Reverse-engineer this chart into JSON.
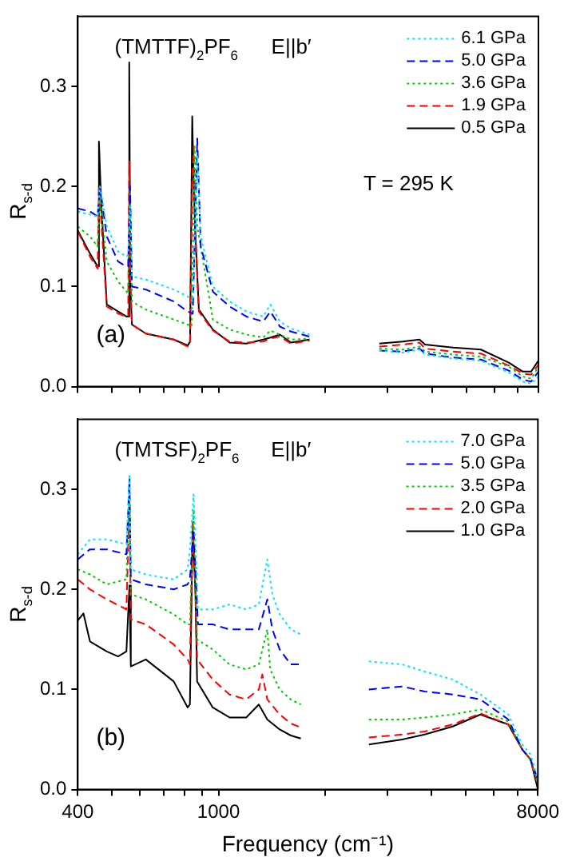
{
  "chart_data": [
    {
      "type": "line",
      "ylabel": "R$_{s-d}$",
      "xlim": [
        400,
        8000
      ],
      "ylim": [
        0,
        0.37
      ],
      "log": "x",
      "tick_labels": "y",
      "legend": "top right",
      "grid": false,
      "xticks": [
        {
          "value": 400,
          "label": null
        },
        {
          "value": 500,
          "label": null
        },
        {
          "value": 600,
          "label": null
        },
        {
          "value": 700,
          "label": null
        },
        {
          "value": 800,
          "label": null
        },
        {
          "value": 900,
          "label": null
        },
        {
          "value": 1000,
          "label": null
        },
        {
          "value": 2000,
          "label": null
        },
        {
          "value": 3000,
          "label": null
        },
        {
          "value": 4000,
          "label": null
        },
        {
          "value": 5000,
          "label": null
        },
        {
          "value": 6000,
          "label": null
        },
        {
          "value": 7000,
          "label": null
        },
        {
          "value": 8000,
          "label": null
        }
      ],
      "yticks": [
        {
          "value": 0,
          "label": "0.0"
        },
        {
          "value": 0.1,
          "label": "0.1"
        },
        {
          "value": 0.2,
          "label": "0.2"
        },
        {
          "value": 0.3,
          "label": "0.3"
        }
      ],
      "annotations": [
        "(TMTTF)$_{2}$PF$_{6}$",
        "E||b′",
        "(a)",
        "T = 295 K"
      ],
      "series": [
        {
          "name": "6.1 GPa",
          "color": "#00e5ff",
          "line_style": "dotted",
          "x": [
            400,
            433,
            455,
            462,
            483,
            520,
            549,
            555,
            562,
            569,
            623,
            747,
            818,
            845,
            870,
            890,
            963,
            1074,
            1198,
            1336,
            1400,
            1489,
            1601,
            1805,
            2300,
            2843,
            3311,
            3692,
            3828,
            4591,
            5503,
            6600,
            7228,
            7629,
            8000
          ],
          "values": [
            0.175,
            0.172,
            0.17,
            0.2,
            0.16,
            0.135,
            0.13,
            0.132,
            0.18,
            0.11,
            0.107,
            0.097,
            0.09,
            0.085,
            0.23,
            0.15,
            0.1,
            0.085,
            0.075,
            0.07,
            0.082,
            0.065,
            0.058,
            0.052,
            null,
            0.036,
            0.034,
            0.037,
            0.032,
            0.028,
            0.026,
            0.014,
            0.005,
            0.003,
            0.01
          ]
        },
        {
          "name": "5.0 GPa",
          "color": "#0000ff",
          "line_style": "dashed",
          "x": [
            400,
            433,
            455,
            462,
            483,
            520,
            549,
            555,
            562,
            569,
            623,
            747,
            818,
            845,
            870,
            890,
            963,
            1074,
            1198,
            1336,
            1400,
            1489,
            1601,
            1805,
            2300,
            2843,
            3311,
            3692,
            3828,
            4591,
            5503,
            6600,
            7228,
            7629,
            8000
          ],
          "values": [
            0.178,
            0.175,
            0.17,
            0.2,
            0.15,
            0.125,
            0.12,
            0.12,
            0.2,
            0.1,
            0.097,
            0.085,
            0.075,
            0.073,
            0.248,
            0.14,
            0.095,
            0.08,
            0.07,
            0.065,
            0.075,
            0.06,
            0.055,
            0.05,
            null,
            0.036,
            0.035,
            0.038,
            0.033,
            0.029,
            0.027,
            0.016,
            0.007,
            0.005,
            0.015
          ]
        },
        {
          "name": "3.6 GPa",
          "color": "#00cc00",
          "line_style": "dotted",
          "x": [
            400,
            433,
            455,
            462,
            483,
            520,
            549,
            555,
            562,
            569,
            623,
            747,
            818,
            838,
            855,
            870,
            963,
            1074,
            1198,
            1336,
            1400,
            1489,
            1601,
            1805,
            2300,
            2843,
            3311,
            3692,
            3828,
            4591,
            5503,
            6600,
            7228,
            7629,
            8000
          ],
          "values": [
            0.16,
            0.15,
            0.14,
            0.19,
            0.125,
            0.105,
            0.095,
            0.093,
            0.2,
            0.085,
            0.077,
            0.067,
            0.062,
            0.06,
            0.24,
            0.16,
            0.067,
            0.057,
            0.052,
            0.049,
            0.056,
            0.052,
            0.047,
            0.048,
            null,
            0.038,
            0.037,
            0.04,
            0.035,
            0.032,
            0.03,
            0.02,
            0.01,
            0.008,
            0.02
          ]
        },
        {
          "name": "1.9 GPa",
          "color": "#ff0000",
          "line_style": "dashed",
          "x": [
            400,
            433,
            455,
            459,
            465,
            483,
            520,
            549,
            555,
            559,
            563,
            569,
            623,
            747,
            818,
            830,
            842,
            850,
            860,
            879,
            963,
            1074,
            1198,
            1336,
            1400,
            1489,
            1601,
            1805,
            2300,
            2843,
            3311,
            3692,
            3828,
            4591,
            5503,
            6600,
            7228,
            7629,
            8000
          ],
          "values": [
            0.155,
            0.13,
            0.118,
            0.2,
            0.17,
            0.08,
            0.073,
            0.07,
            0.07,
            0.225,
            0.1,
            0.062,
            0.053,
            0.047,
            0.04,
            0.045,
            0.21,
            0.24,
            0.15,
            0.075,
            0.056,
            0.045,
            0.044,
            0.045,
            0.048,
            0.05,
            0.043,
            0.046,
            null,
            0.04,
            0.042,
            0.044,
            0.038,
            0.035,
            0.033,
            0.021,
            0.013,
            0.012,
            0.022
          ]
        },
        {
          "name": "0.5 GPa",
          "color": "#000000",
          "line_style": "solid",
          "x": [
            400,
            433,
            455,
            459,
            465,
            483,
            520,
            549,
            555,
            559,
            563,
            569,
            623,
            747,
            818,
            830,
            842,
            850,
            860,
            879,
            963,
            1074,
            1198,
            1336,
            1400,
            1489,
            1601,
            1805,
            2300,
            2843,
            3311,
            3692,
            3828,
            4591,
            5503,
            6600,
            7228,
            7629,
            8000
          ],
          "values": [
            0.156,
            0.133,
            0.12,
            0.245,
            0.19,
            0.082,
            0.075,
            0.07,
            0.07,
            0.324,
            0.1,
            0.062,
            0.053,
            0.047,
            0.041,
            0.045,
            0.27,
            0.2,
            0.15,
            0.077,
            0.057,
            0.044,
            0.043,
            0.047,
            0.049,
            0.052,
            0.044,
            0.047,
            null,
            0.043,
            0.045,
            0.047,
            0.042,
            0.039,
            0.037,
            0.024,
            0.015,
            0.015,
            0.026
          ]
        }
      ]
    },
    {
      "type": "line",
      "xlabel": "Frequency (cm⁻¹)",
      "ylabel": "R$_{s-d}$",
      "xlim": [
        400,
        8000
      ],
      "ylim": [
        0,
        0.37
      ],
      "log": "x",
      "legend": "top right",
      "grid": false,
      "xticks": [
        {
          "value": 400,
          "label": "400"
        },
        {
          "value": 500,
          "label": null
        },
        {
          "value": 600,
          "label": null
        },
        {
          "value": 700,
          "label": null
        },
        {
          "value": 800,
          "label": null
        },
        {
          "value": 900,
          "label": null
        },
        {
          "value": 1000,
          "label": "1000"
        },
        {
          "value": 2000,
          "label": null
        },
        {
          "value": 3000,
          "label": null
        },
        {
          "value": 4000,
          "label": null
        },
        {
          "value": 5000,
          "label": null
        },
        {
          "value": 6000,
          "label": null
        },
        {
          "value": 7000,
          "label": null
        },
        {
          "value": 8000,
          "label": "8000"
        }
      ],
      "yticks": [
        {
          "value": 0,
          "label": "0.0"
        },
        {
          "value": 0.1,
          "label": "0.1"
        },
        {
          "value": 0.2,
          "label": "0.2"
        },
        {
          "value": 0.3,
          "label": "0.3"
        }
      ],
      "annotations": [
        "(TMTSF)$_{2}$PF$_{6}$",
        "E||b′",
        "(b)"
      ],
      "series": [
        {
          "name": "7.0 GPa",
          "color": "#00e5ff",
          "line_style": "dotted",
          "x": [
            400,
            433,
            483,
            549,
            560,
            565,
            623,
            747,
            818,
            830,
            850,
            875,
            963,
            1074,
            1198,
            1300,
            1374,
            1420,
            1489,
            1601,
            1709,
            2200,
            2662,
            3311,
            3828,
            4591,
            5503,
            6600,
            7228,
            7629,
            8000
          ],
          "values": [
            0.235,
            0.25,
            0.25,
            0.245,
            0.315,
            0.22,
            0.215,
            0.21,
            0.22,
            0.24,
            0.295,
            0.18,
            0.18,
            0.185,
            0.18,
            0.185,
            0.23,
            0.195,
            0.175,
            0.16,
            0.155,
            null,
            0.128,
            0.125,
            0.118,
            0.11,
            0.095,
            0.075,
            0.045,
            0.035,
            0.01
          ]
        },
        {
          "name": "5.0 GPa",
          "color": "#0000ff",
          "line_style": "dashed",
          "x": [
            400,
            433,
            483,
            549,
            560,
            565,
            623,
            747,
            818,
            830,
            850,
            875,
            963,
            1074,
            1198,
            1300,
            1374,
            1420,
            1489,
            1601,
            1709,
            2200,
            2662,
            3311,
            3828,
            4591,
            5503,
            6600,
            7228,
            7629,
            8000
          ],
          "values": [
            0.23,
            0.24,
            0.24,
            0.235,
            0.31,
            0.21,
            0.205,
            0.2,
            0.205,
            0.21,
            0.26,
            0.165,
            0.165,
            0.16,
            0.16,
            0.16,
            0.19,
            0.16,
            0.14,
            0.125,
            0.125,
            null,
            0.1,
            0.103,
            0.098,
            0.095,
            0.09,
            0.07,
            0.04,
            0.03,
            0.01
          ]
        },
        {
          "name": "3.5 GPa",
          "color": "#00cc00",
          "line_style": "dotted",
          "x": [
            400,
            433,
            483,
            549,
            560,
            565,
            623,
            747,
            818,
            830,
            850,
            870,
            963,
            1074,
            1198,
            1300,
            1374,
            1400,
            1489,
            1601,
            1709,
            2200,
            2662,
            3311,
            3828,
            4591,
            5503,
            6600,
            7228,
            7629,
            8000
          ],
          "values": [
            0.22,
            0.215,
            0.205,
            0.21,
            0.3,
            0.195,
            0.19,
            0.175,
            0.165,
            0.165,
            0.28,
            0.15,
            0.14,
            0.125,
            0.12,
            0.125,
            0.16,
            0.12,
            0.1,
            0.09,
            0.085,
            null,
            0.07,
            0.07,
            0.072,
            0.075,
            0.08,
            0.068,
            0.04,
            0.03,
            0.005
          ]
        },
        {
          "name": "2.0 GPa",
          "color": "#ff0000",
          "line_style": "dashed",
          "x": [
            400,
            433,
            483,
            549,
            560,
            565,
            623,
            747,
            818,
            830,
            845,
            860,
            870,
            963,
            1074,
            1198,
            1300,
            1330,
            1374,
            1489,
            1601,
            1709,
            2200,
            2662,
            3311,
            3828,
            4591,
            5503,
            6600,
            7228,
            7629,
            8000
          ],
          "values": [
            0.21,
            0.2,
            0.19,
            0.18,
            0.29,
            0.17,
            0.165,
            0.145,
            0.13,
            0.125,
            0.27,
            0.2,
            0.13,
            0.11,
            0.095,
            0.09,
            0.1,
            0.115,
            0.09,
            0.075,
            0.066,
            0.062,
            null,
            0.052,
            0.055,
            0.058,
            0.065,
            0.076,
            0.065,
            0.04,
            0.03,
            0.005
          ]
        },
        {
          "name": "1.0 GPa",
          "color": "#000000",
          "line_style": "solid",
          "x": [
            400,
            415,
            433,
            483,
            520,
            549,
            560,
            565,
            623,
            747,
            818,
            830,
            845,
            860,
            870,
            963,
            1074,
            1198,
            1300,
            1374,
            1489,
            1601,
            1709,
            2200,
            2662,
            3311,
            3828,
            4591,
            5503,
            6600,
            7228,
            7629,
            8000
          ],
          "values": [
            0.169,
            0.176,
            0.148,
            0.138,
            0.133,
            0.138,
            0.204,
            0.123,
            0.13,
            0.108,
            0.082,
            0.085,
            0.26,
            0.2,
            0.108,
            0.082,
            0.072,
            0.072,
            0.085,
            0.07,
            0.06,
            0.054,
            0.051,
            null,
            0.045,
            0.05,
            0.055,
            0.063,
            0.075,
            0.065,
            0.04,
            0.03,
            0.0
          ]
        }
      ]
    }
  ]
}
